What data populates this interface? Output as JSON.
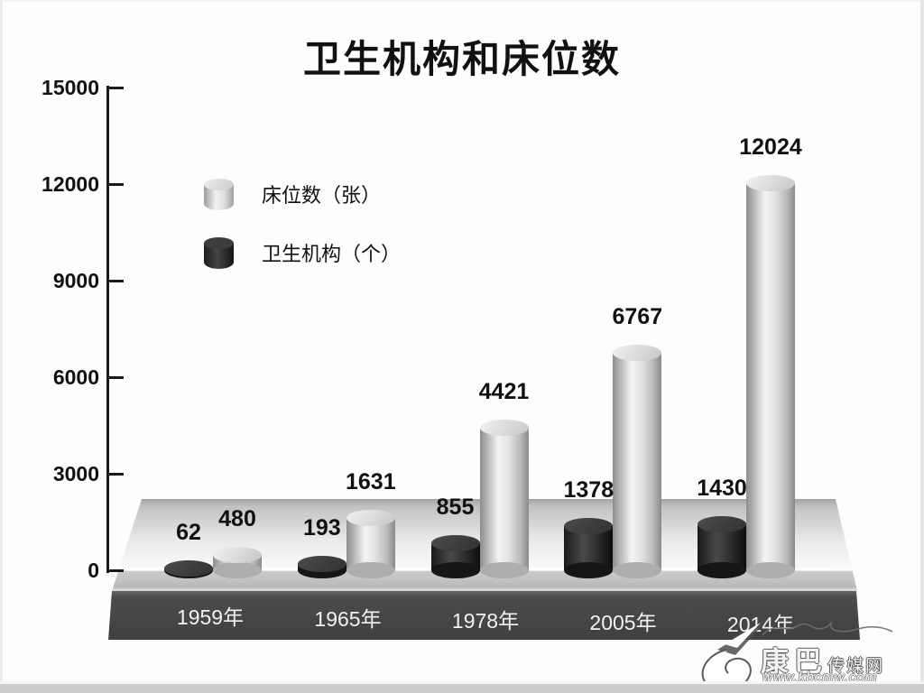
{
  "title": "卫生机构和床位数",
  "legend": {
    "beds_label": "床位数（张）",
    "institutions_label": "卫生机构（个）"
  },
  "chart_data": {
    "type": "bar",
    "subtype": "3d-cylinder",
    "title": "卫生机构和床位数",
    "categories": [
      "1959年",
      "1965年",
      "1978年",
      "2005年",
      "2014年"
    ],
    "series": [
      {
        "key": "institutions",
        "name": "卫生机构（个）",
        "color": "#2b2b2b",
        "values": [
          62,
          193,
          855,
          1378,
          1430
        ]
      },
      {
        "key": "beds",
        "name": "床位数（张）",
        "color": "#d9d9d9",
        "values": [
          480,
          1631,
          4421,
          6767,
          12024
        ]
      }
    ],
    "yticks": [
      0,
      3000,
      6000,
      9000,
      12000,
      15000
    ],
    "ylim": [
      0,
      15000
    ],
    "xlabel": "",
    "ylabel": "",
    "grid": false,
    "legend_position": "upper-left-inside"
  },
  "watermark": {
    "name_large": "康巴",
    "name_small": "传媒网",
    "url": "www.kbcmw.com"
  },
  "colors": {
    "title_text": "#111111",
    "axis": "#1a1a1a",
    "platform_face": "#454545",
    "year_label_text": "#f2f2f2",
    "beds_fill": "#d9d9d9",
    "institutions_fill": "#2b2b2b"
  }
}
